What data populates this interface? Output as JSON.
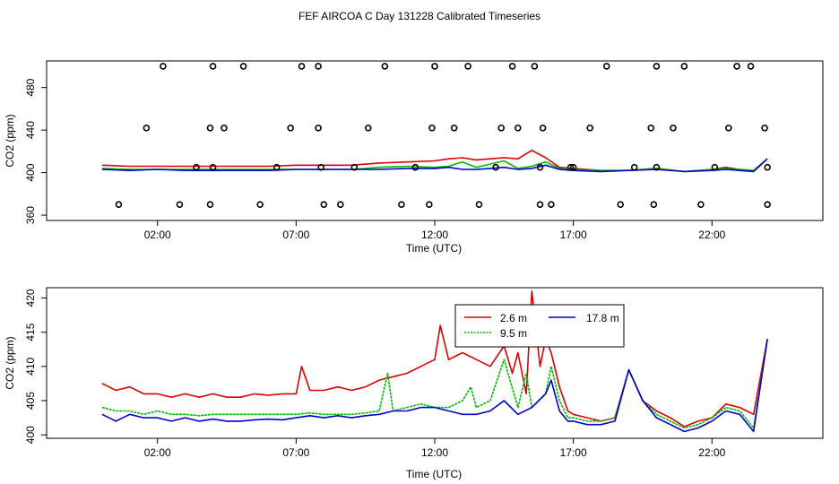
{
  "figure_title": "FEF AIRCOA C  Day 131228  Calibrated Timeseries",
  "chart_data": [
    {
      "type": "line",
      "panel": "top",
      "xlabel": "Time (UTC)",
      "ylabel": "CO2 (ppm)",
      "xlim": [
        -2,
        26
      ],
      "ylim": [
        355,
        505
      ],
      "xticks": [
        2,
        7,
        12,
        17,
        22
      ],
      "xtick_labels": [
        "02:00",
        "07:00",
        "12:00",
        "17:00",
        "22:00"
      ],
      "yticks": [
        360,
        400,
        440,
        480
      ],
      "ytick_labels": [
        "360",
        "400",
        "440",
        "480"
      ],
      "legend": null,
      "series": [
        {
          "color": "#dd0000",
          "x": [
            0,
            1,
            2,
            3,
            4,
            5,
            6,
            7,
            8,
            9,
            10,
            11,
            12,
            12.5,
            13,
            13.5,
            14,
            14.5,
            15,
            15.5,
            16,
            16.5,
            17,
            18,
            19,
            20,
            21,
            22,
            22.5,
            23,
            23.5,
            24
          ],
          "y": [
            407,
            406,
            406,
            406,
            406,
            406,
            406,
            407,
            407,
            407,
            409,
            410,
            411,
            413,
            414,
            412,
            413,
            414,
            413,
            421,
            414,
            405,
            404,
            402,
            402,
            404,
            401,
            403,
            405,
            403,
            402,
            413
          ]
        },
        {
          "color": "#00bb00",
          "x": [
            0,
            1,
            2,
            3,
            4,
            5,
            6,
            7,
            8,
            9,
            10,
            11,
            12,
            12.5,
            13,
            13.5,
            14,
            14.5,
            15,
            15.5,
            16,
            16.5,
            17,
            18,
            19,
            20,
            21,
            22,
            22.5,
            23,
            23.5,
            24
          ],
          "y": [
            404,
            403,
            403,
            403,
            403,
            403,
            403,
            403,
            403,
            403,
            405,
            406,
            405,
            406,
            410,
            405,
            408,
            411,
            404,
            406,
            410,
            404,
            403,
            402,
            402,
            404,
            401,
            403,
            404,
            403,
            402,
            413
          ]
        },
        {
          "color": "#0000cc",
          "x": [
            0,
            1,
            2,
            3,
            4,
            5,
            6,
            7,
            8,
            9,
            10,
            11,
            12,
            12.5,
            13,
            13.5,
            14,
            14.5,
            15,
            15.5,
            16,
            16.5,
            17,
            18,
            19,
            20,
            21,
            22,
            22.5,
            23,
            23.5,
            24
          ],
          "y": [
            403,
            402,
            403,
            402,
            402,
            402,
            402,
            403,
            403,
            403,
            403,
            404,
            404,
            405,
            403,
            403,
            404,
            405,
            403,
            404,
            407,
            403,
            402,
            401,
            402,
            403,
            401,
            402,
            403,
            402,
            401,
            413
          ]
        }
      ],
      "scatter": {
        "color": "#000000",
        "x": [
          0.6,
          1.6,
          2.2,
          2.8,
          3.4,
          3.9,
          3.9,
          4.0,
          4.0,
          4.4,
          5.1,
          5.7,
          6.3,
          6.8,
          7.2,
          7.8,
          7.8,
          7.9,
          8.0,
          8.6,
          9.1,
          9.6,
          10.2,
          10.8,
          11.3,
          11.8,
          11.9,
          12.0,
          12.7,
          13.2,
          13.6,
          14.2,
          14.4,
          14.8,
          15.0,
          15.6,
          15.8,
          15.8,
          15.9,
          16.2,
          16.9,
          17.0,
          17.6,
          18.2,
          18.7,
          19.2,
          19.8,
          19.9,
          20.0,
          20.0,
          20.6,
          21.0,
          21.6,
          22.1,
          22.6,
          22.9,
          23.4,
          23.9,
          24.0,
          24.0
        ],
        "y": [
          370,
          442,
          500,
          370,
          405,
          370,
          442,
          500,
          405,
          442,
          500,
          370,
          405,
          442,
          500,
          500,
          442,
          405,
          370,
          370,
          405,
          442,
          500,
          370,
          405,
          370,
          442,
          500,
          442,
          500,
          370,
          405,
          442,
          500,
          442,
          500,
          405,
          370,
          442,
          370,
          405,
          405,
          442,
          500,
          370,
          405,
          442,
          370,
          405,
          500,
          442,
          500,
          370,
          405,
          442,
          500,
          500,
          442,
          405,
          370
        ]
      }
    },
    {
      "type": "line",
      "panel": "bottom",
      "xlabel": "Time (UTC)",
      "ylabel": "CO2 (ppm)",
      "xlim": [
        -2,
        26
      ],
      "ylim": [
        399.5,
        421.5
      ],
      "xticks": [
        2,
        7,
        12,
        17,
        22
      ],
      "xtick_labels": [
        "02:00",
        "07:00",
        "12:00",
        "17:00",
        "22:00"
      ],
      "yticks": [
        400,
        405,
        410,
        415,
        420
      ],
      "ytick_labels": [
        "400",
        "405",
        "410",
        "415",
        "420"
      ],
      "legend_position": "top-center",
      "series": [
        {
          "name": "2.6 m",
          "color": "#dd0000",
          "x": [
            0,
            0.5,
            1,
            1.5,
            2,
            2.5,
            3,
            3.5,
            4,
            4.5,
            5,
            5.5,
            6,
            6.5,
            7,
            7.2,
            7.5,
            8,
            8.5,
            9,
            9.5,
            10,
            10.5,
            11,
            11.5,
            12,
            12.2,
            12.5,
            13,
            13.5,
            14,
            14.5,
            14.8,
            15,
            15.3,
            15.5,
            15.8,
            16,
            16.2,
            16.5,
            16.8,
            17,
            17.5,
            18,
            18.5,
            19,
            19.5,
            20,
            20.5,
            21,
            21.5,
            22,
            22.5,
            23,
            23.5,
            24
          ],
          "y": [
            407.5,
            406.5,
            407,
            406,
            406,
            405.5,
            406,
            405.5,
            406,
            405.5,
            405.5,
            406,
            405.8,
            406,
            406,
            410,
            406.5,
            406.5,
            407,
            406.5,
            407,
            408,
            408.5,
            409,
            410,
            411,
            416,
            411,
            412,
            411,
            410,
            413,
            409,
            412,
            406,
            421,
            410,
            414,
            412,
            407,
            403.5,
            403,
            402.5,
            402,
            402.5,
            409.5,
            405,
            403.5,
            402.5,
            401.2,
            402,
            402.5,
            404.5,
            404,
            403,
            414
          ]
        },
        {
          "name": "9.5 m",
          "color": "#00bb00",
          "x": [
            0,
            0.5,
            1,
            1.5,
            2,
            2.5,
            3,
            3.5,
            4,
            4.5,
            5,
            5.5,
            6,
            6.5,
            7,
            7.5,
            8,
            8.5,
            9,
            9.5,
            10,
            10.3,
            10.5,
            11,
            11.5,
            12,
            12.5,
            13,
            13.3,
            13.5,
            14,
            14.5,
            15,
            15.3,
            15.5,
            16,
            16.2,
            16.5,
            16.8,
            17,
            17.5,
            18,
            18.5,
            19,
            19.5,
            20,
            20.5,
            21,
            21.5,
            22,
            22.5,
            23,
            23.5,
            24
          ],
          "y": [
            404,
            403.5,
            403.5,
            403,
            403.5,
            403,
            403,
            402.8,
            403,
            403,
            403,
            403,
            403,
            403,
            403,
            403.2,
            403,
            403,
            403,
            403.2,
            403.5,
            409,
            403.5,
            404,
            404.5,
            404,
            404,
            405,
            407,
            404,
            405,
            411,
            404,
            409,
            404,
            406,
            410,
            405,
            402.5,
            402.5,
            402,
            402,
            402.5,
            409.5,
            405,
            403,
            402,
            401,
            401.5,
            402.5,
            404,
            403.5,
            401,
            414
          ]
        },
        {
          "name": "17.8 m",
          "color": "#0000cc",
          "x": [
            0,
            0.5,
            1,
            1.5,
            2,
            2.5,
            3,
            3.5,
            4,
            4.5,
            5,
            5.5,
            6,
            6.5,
            7,
            7.5,
            8,
            8.5,
            9,
            9.5,
            10,
            10.5,
            11,
            11.5,
            12,
            12.5,
            13,
            13.5,
            14,
            14.5,
            15,
            15.5,
            16,
            16.2,
            16.5,
            16.8,
            17,
            17.5,
            18,
            18.5,
            19,
            19.5,
            20,
            20.5,
            21,
            21.5,
            22,
            22.5,
            23,
            23.5,
            24
          ],
          "y": [
            403,
            402,
            403,
            402.5,
            402.5,
            402,
            402.5,
            402,
            402.3,
            402,
            402,
            402.2,
            402.3,
            402.2,
            402.5,
            402.8,
            402.5,
            402.8,
            402.5,
            402.8,
            403,
            403.5,
            403.5,
            404,
            404,
            403.5,
            403,
            403,
            403.5,
            405,
            403,
            404,
            406,
            408,
            403.5,
            402,
            402,
            401.5,
            401.5,
            402,
            409.5,
            405,
            402.5,
            401.5,
            400.5,
            401,
            402,
            403.5,
            403,
            400.5,
            414
          ]
        }
      ]
    }
  ]
}
